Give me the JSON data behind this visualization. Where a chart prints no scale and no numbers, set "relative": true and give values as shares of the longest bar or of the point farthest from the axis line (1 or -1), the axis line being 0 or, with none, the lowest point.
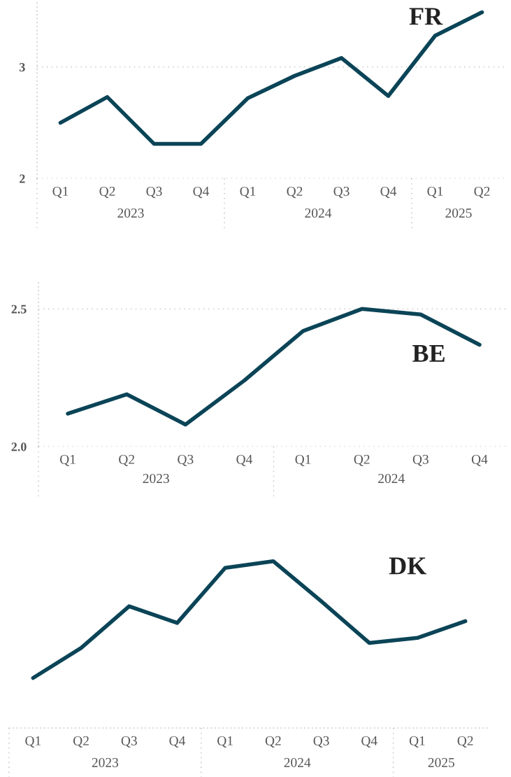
{
  "chart_data": [
    {
      "type": "line",
      "title": "FR",
      "categories": [
        "Q1",
        "Q2",
        "Q3",
        "Q4",
        "Q1",
        "Q2",
        "Q3",
        "Q4",
        "Q1",
        "Q2"
      ],
      "annotations": [
        "2023",
        "2024",
        "2025"
      ],
      "ylim": [
        2,
        3.6
      ],
      "yticks": [
        2,
        3
      ],
      "grid": "y",
      "legend": false,
      "series": [
        {
          "color": "#0b4457",
          "values": [
            2.5,
            2.73,
            2.31,
            2.31,
            2.72,
            2.92,
            3.08,
            2.74,
            3.28,
            3.49
          ]
        }
      ]
    },
    {
      "type": "line",
      "title": "BE",
      "categories": [
        "Q1",
        "Q2",
        "Q3",
        "Q4",
        "Q1",
        "Q2",
        "Q3",
        "Q4"
      ],
      "annotations": [
        "2023",
        "2024"
      ],
      "ylim": [
        2.0,
        2.6
      ],
      "yticks": [
        {
          "value": 2.0,
          "label": "2.0"
        },
        2.5
      ],
      "grid": "y",
      "legend": false,
      "series": [
        {
          "color": "#0b4457",
          "values": [
            2.12,
            2.19,
            2.08,
            2.24,
            2.42,
            2.5,
            2.48,
            2.37
          ]
        }
      ]
    },
    {
      "type": "line",
      "title": "DK",
      "categories": [
        "Q1",
        "Q2",
        "Q3",
        "Q4",
        "Q1",
        "Q2",
        "Q3",
        "Q4",
        "Q1",
        "Q2"
      ],
      "annotations": [
        "2023",
        "2024",
        "2025"
      ],
      "relative": true,
      "legend": false,
      "series": [
        {
          "color": "#0b4457",
          "values": [
            0.3,
            0.48,
            0.73,
            0.63,
            0.96,
            1.0,
            0.76,
            0.51,
            0.54,
            0.64
          ]
        }
      ]
    }
  ]
}
